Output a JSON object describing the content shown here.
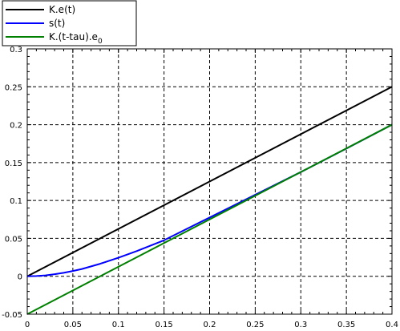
{
  "chart_data": {
    "type": "line",
    "title": "",
    "xlabel": "",
    "ylabel": "",
    "xlim": [
      0,
      0.4
    ],
    "ylim": [
      -0.05,
      0.3
    ],
    "x_ticks": [
      0,
      0.05,
      0.1,
      0.15,
      0.2,
      0.25,
      0.3,
      0.35,
      0.4
    ],
    "x_tick_labels": [
      "0",
      "0.05",
      "0.1",
      "0.15",
      "0.2",
      "0.25",
      "0.3",
      "0.35",
      "0.4"
    ],
    "y_ticks": [
      -0.05,
      0,
      0.05,
      0.1,
      0.15,
      0.2,
      0.25,
      0.3
    ],
    "y_tick_labels": [
      "-0.05",
      "0",
      "0.05",
      "0.1",
      "0.15",
      "0.2",
      "0.25",
      "0.3"
    ],
    "grid": true,
    "legend_position": "top-left, outside above plot",
    "series": [
      {
        "name": "K.e(t)",
        "color": "#000000",
        "x": [
          0,
          0.4
        ],
        "y": [
          0,
          0.25
        ]
      },
      {
        "name": "s(t)",
        "color": "#0000ff",
        "x": [
          0,
          0.01,
          0.02,
          0.03,
          0.04,
          0.05,
          0.06,
          0.08,
          0.1,
          0.12,
          0.15,
          0.2,
          0.25,
          0.3,
          0.35,
          0.4
        ],
        "y": [
          0,
          0.0003,
          0.0012,
          0.0027,
          0.0046,
          0.007,
          0.0096,
          0.0165,
          0.0245,
          0.0332,
          0.0475,
          0.0775,
          0.1075,
          0.1375,
          0.1685,
          0.2
        ]
      },
      {
        "name": "K.(t-tau).e",
        "name_subscript": "0",
        "color": "#008000",
        "x": [
          0,
          0.4
        ],
        "y": [
          -0.05,
          0.2
        ]
      }
    ]
  }
}
